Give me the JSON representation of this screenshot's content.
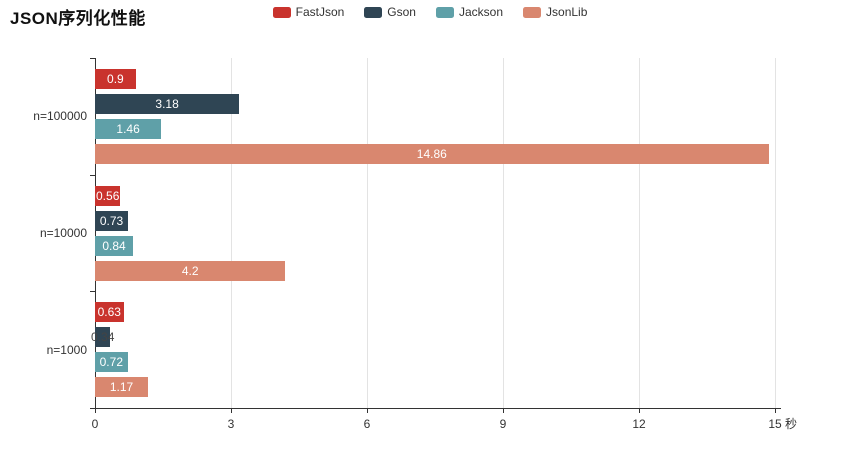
{
  "title": "JSON序列化性能",
  "legend": [
    {
      "label": "FastJson",
      "color": "#c9332d"
    },
    {
      "label": "Gson",
      "color": "#2f4554"
    },
    {
      "label": "Jackson",
      "color": "#5fa0a8"
    },
    {
      "label": "JsonLib",
      "color": "#d9876f"
    }
  ],
  "chart_data": {
    "type": "bar",
    "orientation": "horizontal",
    "title": "JSON序列化性能",
    "categories": [
      "n=100000",
      "n=10000",
      "n=1000"
    ],
    "series": [
      {
        "name": "FastJson",
        "color": "#c9332d",
        "values": [
          0.9,
          0.56,
          0.63
        ]
      },
      {
        "name": "Gson",
        "color": "#2f4554",
        "values": [
          3.18,
          0.73,
          0.34
        ]
      },
      {
        "name": "Jackson",
        "color": "#5fa0a8",
        "values": [
          1.46,
          0.84,
          0.72
        ]
      },
      {
        "name": "JsonLib",
        "color": "#d9876f",
        "values": [
          14.86,
          4.2,
          1.17
        ]
      }
    ],
    "xlabel": "秒",
    "ylabel": "",
    "x_ticks": [
      0,
      3,
      6,
      9,
      12,
      15
    ],
    "xlim": [
      0,
      15
    ],
    "grid": true,
    "legend_position": "top-center",
    "value_labels": "inside-center"
  }
}
